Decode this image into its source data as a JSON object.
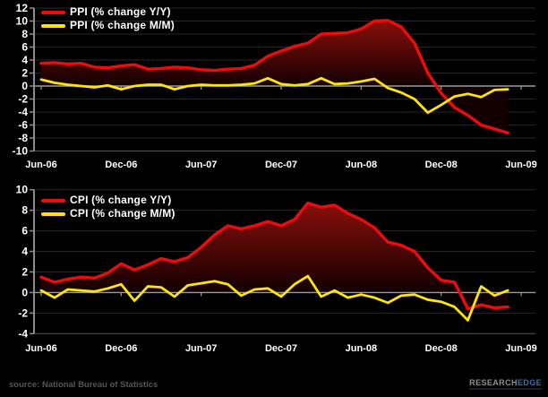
{
  "page": {
    "background": "#000000"
  },
  "colors": {
    "yy_line": "#ec0c0c",
    "mm_line": "#ffe408",
    "area_gradient_top": "#8f100c",
    "area_gradient_bottom": "#120000",
    "zero_line": "#9a9a9a",
    "gridline": "#262626",
    "bottom_border": "#555555",
    "axis_line": "#8c8c8c",
    "tick_label": "#ffffff"
  },
  "footer": {
    "source_text": "source: National Bureau of Statistics",
    "logo_research": "RESEARCH",
    "logo_edge": "EDGE"
  },
  "chart_data": [
    {
      "type": "area",
      "title": "",
      "legend_position": "top-left",
      "grid": true,
      "ylim": [
        -10,
        12
      ],
      "ytick_step": 2,
      "y_ticks": [
        12,
        10,
        8,
        6,
        4,
        2,
        0,
        -2,
        -4,
        -6,
        -8,
        -10
      ],
      "x_axis_ticks": [
        "Jun-06",
        "Dec-06",
        "Jun-07",
        "Dec-07",
        "Jun-08",
        "Dec-08",
        "Jun-09"
      ],
      "x": [
        "Jun-06",
        "Jul-06",
        "Aug-06",
        "Sep-06",
        "Oct-06",
        "Nov-06",
        "Dec-06",
        "Jan-07",
        "Feb-07",
        "Mar-07",
        "Apr-07",
        "May-07",
        "Jun-07",
        "Jul-07",
        "Aug-07",
        "Sep-07",
        "Oct-07",
        "Nov-07",
        "Dec-07",
        "Jan-08",
        "Feb-08",
        "Mar-08",
        "Apr-08",
        "May-08",
        "Jun-08",
        "Jul-08",
        "Aug-08",
        "Sep-08",
        "Oct-08",
        "Nov-08",
        "Dec-08",
        "Jan-09",
        "Feb-09",
        "Mar-09",
        "Apr-09",
        "May-09"
      ],
      "series": [
        {
          "name": "PPI (% change Y/Y)",
          "style": "line-with-dark-red-area-fill",
          "color": "#ec0c0c",
          "values": [
            3.5,
            3.6,
            3.4,
            3.5,
            2.9,
            2.8,
            3.1,
            3.3,
            2.6,
            2.7,
            2.9,
            2.8,
            2.5,
            2.4,
            2.6,
            2.7,
            3.2,
            4.6,
            5.4,
            6.1,
            6.6,
            8.0,
            8.1,
            8.2,
            8.8,
            10.0,
            10.1,
            9.1,
            6.6,
            2.0,
            -1.1,
            -3.3,
            -4.5,
            -6.0,
            -6.6,
            -7.2
          ]
        },
        {
          "name": "PPI (% change M/M)",
          "style": "line",
          "color": "#ffe408",
          "values": [
            1.0,
            0.5,
            0.2,
            0.0,
            -0.2,
            0.1,
            -0.5,
            0.0,
            0.2,
            0.2,
            -0.5,
            0.0,
            0.2,
            0.1,
            0.1,
            0.2,
            0.4,
            1.2,
            0.3,
            0.1,
            0.3,
            1.2,
            0.3,
            0.4,
            0.7,
            1.1,
            -0.3,
            -1.0,
            -2.0,
            -4.1,
            -2.9,
            -1.6,
            -1.2,
            -1.7,
            -0.6,
            -0.5
          ]
        }
      ]
    },
    {
      "type": "area",
      "title": "",
      "legend_position": "top-left",
      "grid": true,
      "ylim": [
        -4,
        10
      ],
      "ytick_step": 2,
      "y_ticks": [
        10,
        8,
        6,
        4,
        2,
        0,
        -2,
        -4
      ],
      "x_axis_ticks": [
        "Jun-06",
        "Dec-06",
        "Jun-07",
        "Dec-07",
        "Jun-08",
        "Dec-08",
        "Jun-09"
      ],
      "x": [
        "Jun-06",
        "Jul-06",
        "Aug-06",
        "Sep-06",
        "Oct-06",
        "Nov-06",
        "Dec-06",
        "Jan-07",
        "Feb-07",
        "Mar-07",
        "Apr-07",
        "May-07",
        "Jun-07",
        "Jul-07",
        "Aug-07",
        "Sep-07",
        "Oct-07",
        "Nov-07",
        "Dec-07",
        "Jan-08",
        "Feb-08",
        "Mar-08",
        "Apr-08",
        "May-08",
        "Jun-08",
        "Jul-08",
        "Aug-08",
        "Sep-08",
        "Oct-08",
        "Nov-08",
        "Dec-08",
        "Jan-09",
        "Feb-09",
        "Mar-09",
        "Apr-09",
        "May-09"
      ],
      "series": [
        {
          "name": "CPI (% change Y/Y)",
          "style": "line-with-dark-red-area-fill",
          "color": "#ec0c0c",
          "values": [
            1.5,
            1.0,
            1.3,
            1.5,
            1.4,
            1.9,
            2.8,
            2.2,
            2.7,
            3.3,
            3.0,
            3.4,
            4.4,
            5.6,
            6.5,
            6.2,
            6.5,
            6.9,
            6.5,
            7.1,
            8.7,
            8.3,
            8.5,
            7.7,
            7.1,
            6.3,
            4.9,
            4.6,
            4.0,
            2.4,
            1.2,
            1.0,
            -1.6,
            -1.2,
            -1.5,
            -1.4
          ]
        },
        {
          "name": "CPI (% change M/M)",
          "style": "line",
          "color": "#ffe408",
          "values": [
            0.2,
            -0.5,
            0.3,
            0.2,
            0.1,
            0.4,
            0.8,
            -0.8,
            0.6,
            0.5,
            -0.4,
            0.7,
            0.9,
            1.1,
            0.8,
            -0.3,
            0.3,
            0.4,
            -0.4,
            0.8,
            1.6,
            -0.4,
            0.2,
            -0.5,
            -0.2,
            -0.5,
            -1.0,
            -0.3,
            -0.2,
            -0.7,
            -0.9,
            -1.4,
            -2.7,
            0.6,
            -0.3,
            0.2
          ]
        }
      ]
    }
  ]
}
